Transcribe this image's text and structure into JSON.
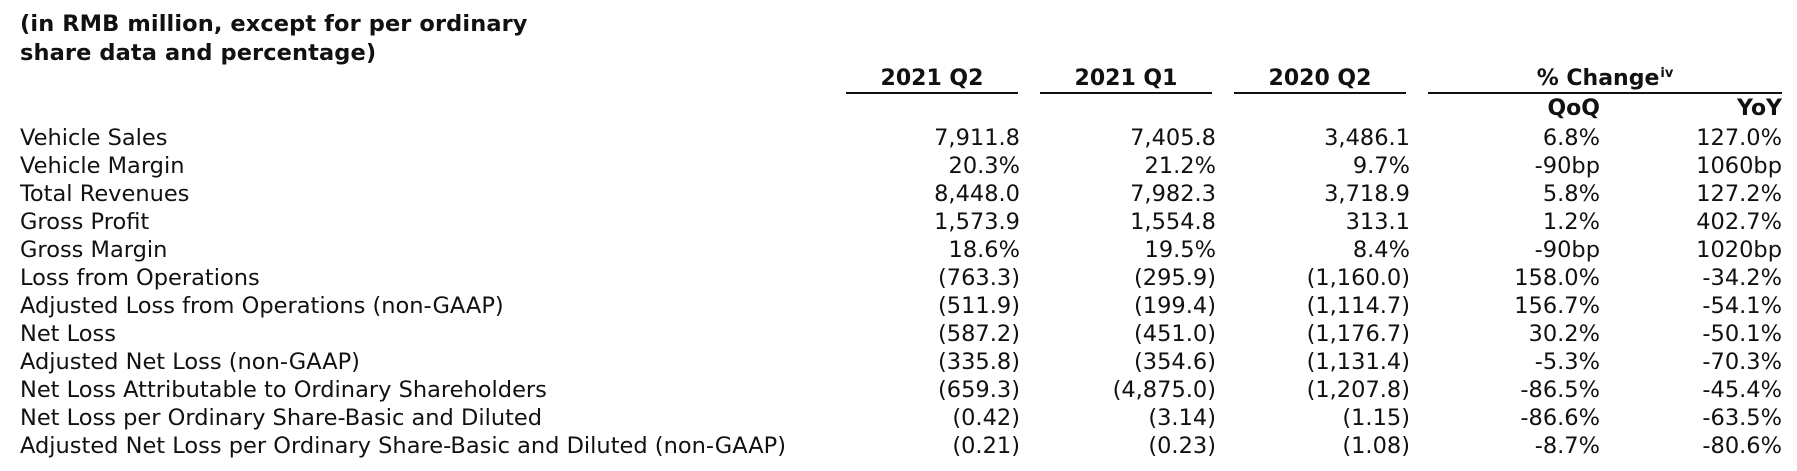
{
  "caption": {
    "line1": "(in RMB million, except for per ordinary",
    "line2": "share data and percentage)"
  },
  "columns": {
    "c1": "2021 Q2",
    "c2": "2021 Q1",
    "c3": "2020 Q2",
    "change": "% Change",
    "change_sup": "iv",
    "qoq": "QoQ",
    "yoy": "YoY"
  },
  "rows": [
    {
      "label": "Vehicle Sales",
      "c1": "7,911.8",
      "c2": "7,405.8",
      "c3": "3,486.1",
      "qoq": "6.8%",
      "yoy": "127.0%"
    },
    {
      "label": "Vehicle Margin",
      "c1": "20.3%",
      "c2": "21.2%",
      "c3": "9.7%",
      "qoq": "-90bp",
      "yoy": "1060bp"
    },
    {
      "label": "Total Revenues",
      "c1": "8,448.0",
      "c2": "7,982.3",
      "c3": "3,718.9",
      "qoq": "5.8%",
      "yoy": "127.2%"
    },
    {
      "label": "Gross Profit",
      "c1": "1,573.9",
      "c2": "1,554.8",
      "c3": "313.1",
      "qoq": "1.2%",
      "yoy": "402.7%"
    },
    {
      "label": "Gross Margin",
      "c1": "18.6%",
      "c2": "19.5%",
      "c3": "8.4%",
      "qoq": "-90bp",
      "yoy": "1020bp"
    },
    {
      "label": "Loss from Operations",
      "c1": "(763.3)",
      "c2": "(295.9)",
      "c3": "(1,160.0)",
      "qoq": "158.0%",
      "yoy": "-34.2%"
    },
    {
      "label": "Adjusted Loss from Operations (non-GAAP)",
      "c1": "(511.9)",
      "c2": "(199.4)",
      "c3": "(1,114.7)",
      "qoq": "156.7%",
      "yoy": "-54.1%"
    },
    {
      "label": "Net Loss",
      "c1": "(587.2)",
      "c2": "(451.0)",
      "c3": "(1,176.7)",
      "qoq": "30.2%",
      "yoy": "-50.1%"
    },
    {
      "label": "Adjusted Net Loss (non-GAAP)",
      "c1": "(335.8)",
      "c2": "(354.6)",
      "c3": "(1,131.4)",
      "qoq": "-5.3%",
      "yoy": "-70.3%"
    },
    {
      "label": "Net Loss Attributable to Ordinary Shareholders",
      "c1": "(659.3)",
      "c2": "(4,875.0)",
      "c3": "(1,207.8)",
      "qoq": "-86.5%",
      "yoy": "-45.4%"
    },
    {
      "label": "Net Loss per Ordinary Share-Basic and Diluted",
      "c1": "(0.42)",
      "c2": "(3.14)",
      "c3": "(1.15)",
      "qoq": "-86.6%",
      "yoy": "-63.5%"
    },
    {
      "label": "Adjusted Net Loss per Ordinary Share-Basic and Diluted (non-GAAP)",
      "c1": "(0.21)",
      "c2": "(0.23)",
      "c3": "(1.08)",
      "qoq": "-8.7%",
      "yoy": "-80.6%"
    }
  ]
}
